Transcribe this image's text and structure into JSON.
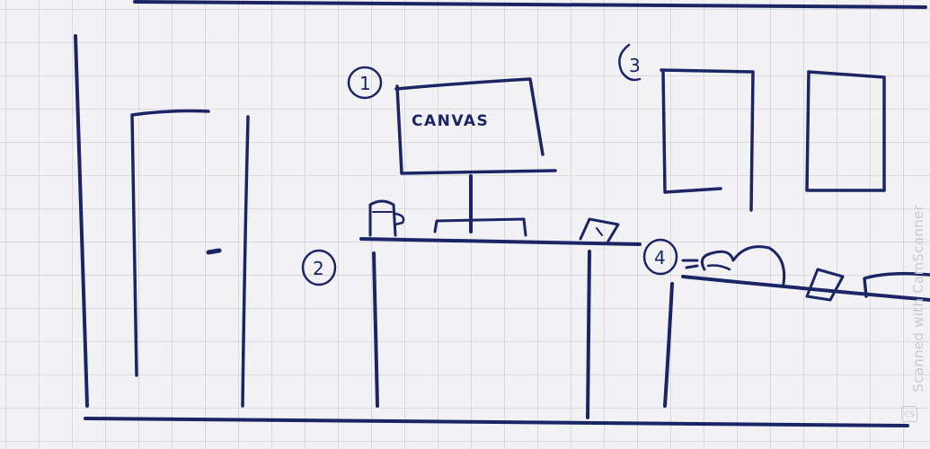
{
  "sketch": {
    "canvas_label": "CANVAS",
    "markers": [
      "1",
      "2",
      "3",
      "4"
    ]
  },
  "watermark": {
    "text": "Scanned with CamScanner",
    "badge": "CS"
  },
  "colors": {
    "ink": "#1b2566",
    "paper": "#f2f2f4",
    "grid": "#b4b4c2"
  }
}
